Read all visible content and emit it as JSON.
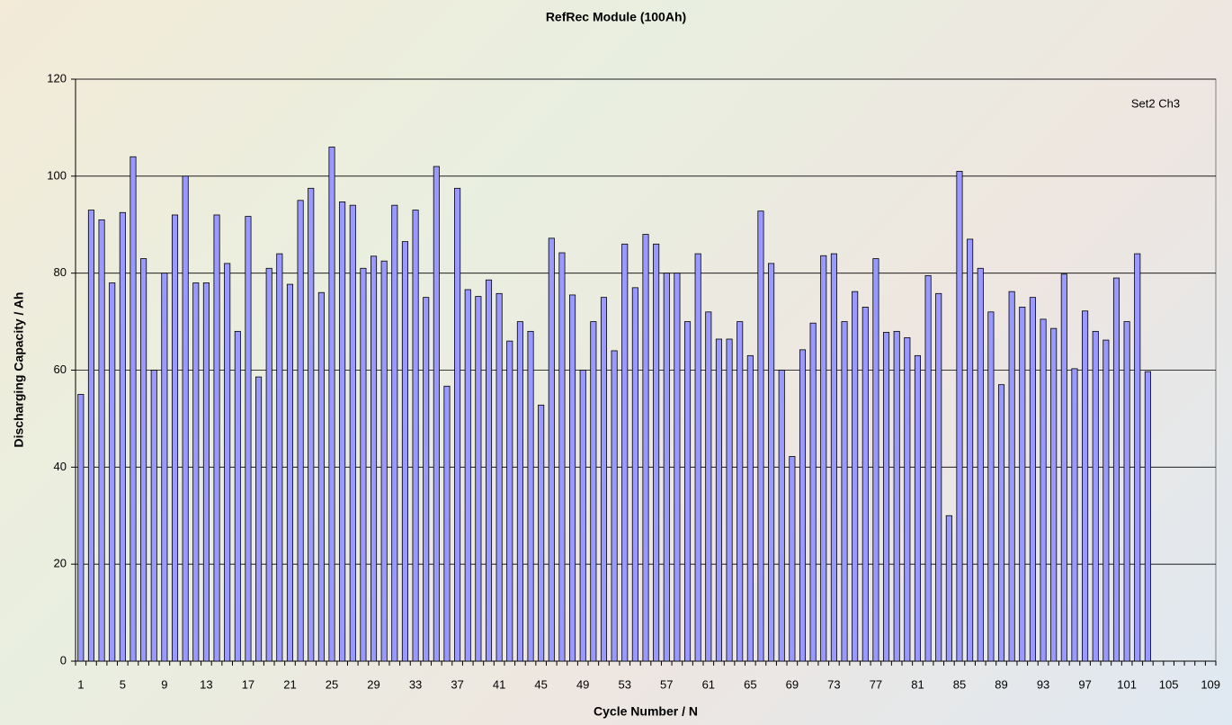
{
  "chart_data": {
    "type": "bar",
    "title": "RefRec Module (100Ah)",
    "annotation": "Set2 Ch3",
    "x_label": "Cycle Number / N",
    "y_label": "Discharging Capacity / Ah",
    "categories": [
      "1",
      null,
      null,
      null,
      "5",
      null,
      null,
      null,
      "9",
      null,
      null,
      null,
      "13",
      null,
      null,
      null,
      "17",
      null,
      null,
      null,
      "21",
      null,
      null,
      null,
      "25",
      null,
      null,
      null,
      "29",
      null,
      null,
      null,
      "33",
      null,
      null,
      null,
      "37",
      null,
      null,
      null,
      "41",
      null,
      null,
      null,
      "45",
      null,
      null,
      null,
      "49",
      null,
      null,
      null,
      "53",
      null,
      null,
      null,
      "57",
      null,
      null,
      null,
      "61",
      null,
      null,
      null,
      "65",
      null,
      null,
      null,
      "69",
      null,
      null,
      null,
      "73",
      null,
      null,
      null,
      "77",
      null,
      null,
      null,
      "81",
      null,
      null,
      null,
      "85",
      null,
      null,
      null,
      "89",
      null,
      null,
      null,
      "93",
      null,
      null,
      null,
      "97",
      null,
      null,
      null,
      "101",
      null,
      null,
      null,
      "105",
      null,
      null,
      null,
      "109"
    ],
    "values": [
      55,
      93,
      91,
      78,
      92.5,
      104,
      83,
      60,
      80,
      92,
      100,
      78,
      78,
      92,
      82,
      68,
      91.7,
      58.6,
      81,
      84,
      77.7,
      95,
      97.5,
      76,
      106,
      94.7,
      94,
      81,
      83.5,
      82.5,
      94,
      86.5,
      93,
      75,
      102,
      56.7,
      97.5,
      76.6,
      75.2,
      78.6,
      75.8,
      66,
      70,
      68,
      52.8,
      87.2,
      84.2,
      75.5,
      60,
      70,
      75,
      64,
      86,
      77,
      88,
      86,
      80,
      80,
      70,
      84,
      72,
      66.4,
      66.4,
      70,
      63,
      92.8,
      82,
      60,
      42.2,
      64.2,
      69.7,
      83.6,
      84,
      70,
      76.2,
      73,
      83,
      67.8,
      68,
      66.7,
      63,
      79.5,
      75.8,
      30,
      101,
      87,
      81,
      72,
      57,
      76.2,
      73,
      75,
      70.5,
      68.6,
      79.8,
      60.3,
      72.2,
      68,
      66.2,
      79,
      70,
      84,
      59.7,
      null,
      null,
      null,
      null,
      null,
      null
    ],
    "color": "#9999ff",
    "ylim": [
      0,
      120
    ],
    "yticks": [
      0,
      20,
      40,
      60,
      80,
      100,
      120
    ],
    "grid": true
  }
}
